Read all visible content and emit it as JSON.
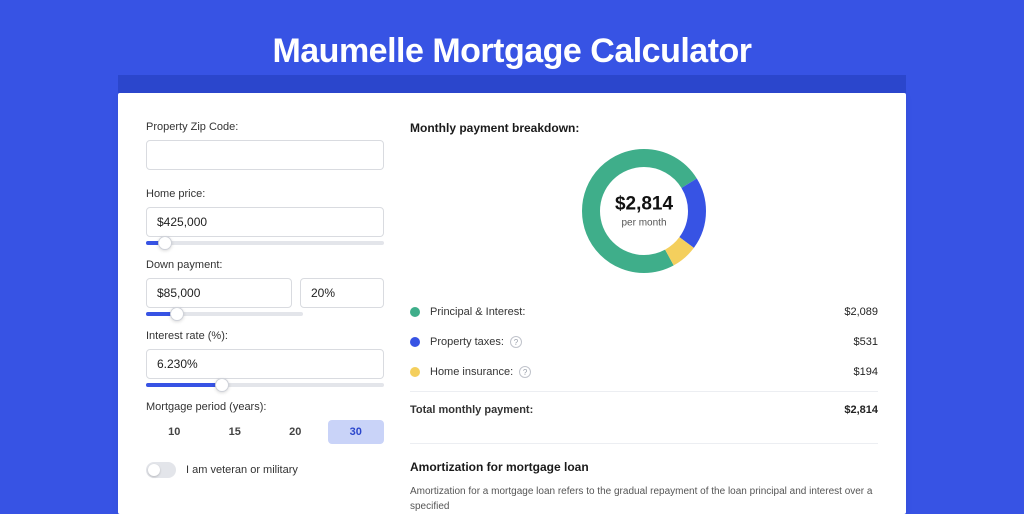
{
  "title": "Maumelle Mortgage Calculator",
  "form": {
    "zip": {
      "label": "Property Zip Code:",
      "value": ""
    },
    "price": {
      "label": "Home price:",
      "value": "$425,000",
      "slider_pct": 8
    },
    "down": {
      "label": "Down payment:",
      "amount": "$85,000",
      "pct": "20%",
      "slider_pct": 20
    },
    "rate": {
      "label": "Interest rate (%):",
      "value": "6.230%",
      "slider_pct": 32
    },
    "period": {
      "label": "Mortgage period (years):",
      "options": [
        "10",
        "15",
        "20",
        "30"
      ],
      "active": "30"
    },
    "veteran": {
      "label": "I am veteran or military",
      "on": false
    }
  },
  "breakdown": {
    "title": "Monthly payment breakdown:",
    "center_amount": "$2,814",
    "center_sub": "per month",
    "donut": {
      "size": 124,
      "stroke": 18,
      "segments": [
        {
          "label": "Principal & Interest:",
          "value": "$2,089",
          "color": "#3fae8a",
          "pct": 74.2,
          "info": false
        },
        {
          "label": "Property taxes:",
          "value": "$531",
          "color": "#3753e4",
          "pct": 18.9,
          "info": true
        },
        {
          "label": "Home insurance:",
          "value": "$194",
          "color": "#f4cf5d",
          "pct": 6.9,
          "info": true
        }
      ]
    },
    "total_label": "Total monthly payment:",
    "total_value": "$2,814"
  },
  "amort": {
    "title": "Amortization for mortgage loan",
    "text": "Amortization for a mortgage loan refers to the gradual repayment of the loan principal and interest over a specified"
  },
  "colors": {
    "bg": "#3753e4",
    "accent": "#3753e4"
  }
}
